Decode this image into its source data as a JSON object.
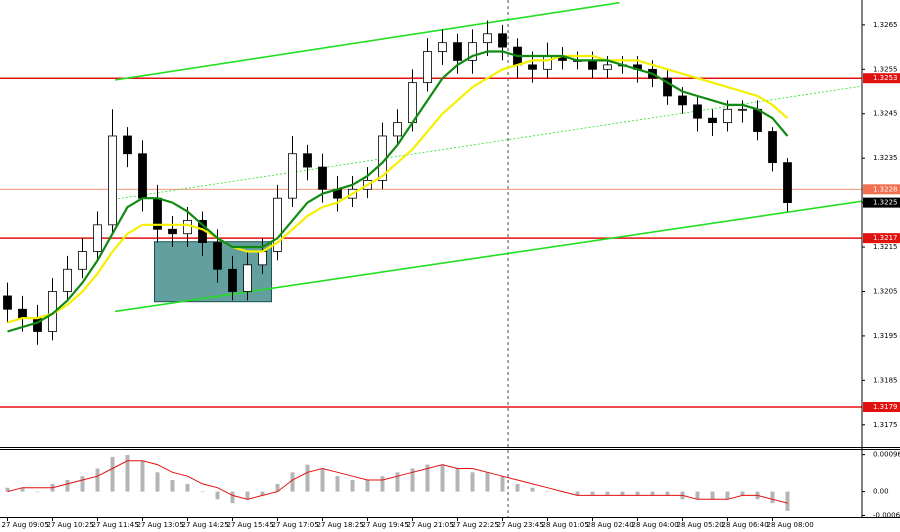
{
  "chart_data": {
    "type": "candlestick",
    "categories": [
      "27 Aug 09:05",
      null,
      null,
      "27 Aug 10:25",
      null,
      null,
      "27 Aug 11:45",
      null,
      null,
      "27 Aug 13:05",
      null,
      null,
      "27 Aug 14:25",
      null,
      null,
      "27 Aug 15:45",
      null,
      null,
      "27 Aug 17:05",
      null,
      null,
      "27 Aug 18:25",
      null,
      null,
      "27 Aug 19:45",
      null,
      null,
      "27 Aug 21:05",
      null,
      null,
      "27 Aug 22:25",
      null,
      null,
      "27 Aug 23:45",
      null,
      null,
      "28 Aug 01:05",
      null,
      null,
      "28 Aug 02:40",
      null,
      null,
      "28 Aug 04:00",
      null,
      null,
      "28 Aug 05:20",
      null,
      null,
      "28 Aug 06:40",
      null,
      null,
      "28 Aug 08:00",
      null
    ],
    "open": [
      1.3204,
      1.3201,
      1.3199,
      1.3196,
      1.3205,
      1.321,
      1.3214,
      1.322,
      1.324,
      1.3236,
      1.3226,
      1.3219,
      1.3218,
      1.3221,
      1.3216,
      1.321,
      1.3205,
      1.3211,
      1.3214,
      1.3226,
      1.3236,
      1.3233,
      1.3228,
      1.3226,
      1.3228,
      1.323,
      1.324,
      1.3243,
      1.3252,
      1.3259,
      1.3261,
      1.3257,
      1.3261,
      1.3263,
      1.326,
      1.3256,
      1.3255,
      1.3258,
      1.3257,
      1.3257,
      1.3255,
      1.3256,
      1.3256,
      1.3255,
      1.3253,
      1.3249,
      1.3247,
      1.3244,
      1.3243,
      1.3246,
      1.3246,
      1.3241,
      1.3234
    ],
    "high": [
      1.3207,
      1.3204,
      1.3202,
      1.3208,
      1.3213,
      1.3217,
      1.3223,
      1.3246,
      1.3242,
      1.3239,
      1.3229,
      1.3222,
      1.3224,
      1.3223,
      1.3219,
      1.3213,
      1.3214,
      1.3217,
      1.3229,
      1.324,
      1.3238,
      1.3236,
      1.3231,
      1.3231,
      1.3233,
      1.3243,
      1.3246,
      1.3255,
      1.3262,
      1.3264,
      1.3263,
      1.3264,
      1.3266,
      1.3265,
      1.3262,
      1.3259,
      1.3261,
      1.326,
      1.3259,
      1.3259,
      1.3258,
      1.3258,
      1.3258,
      1.3257,
      1.3255,
      1.3251,
      1.3249,
      1.3246,
      1.3248,
      1.3248,
      1.3248,
      1.3242,
      1.3235
    ],
    "low": [
      1.3198,
      1.3196,
      1.3193,
      1.3194,
      1.3203,
      1.3208,
      1.3212,
      1.3218,
      1.3233,
      1.3223,
      1.3216,
      1.3215,
      1.3215,
      1.3213,
      1.3207,
      1.3203,
      1.3203,
      1.3209,
      1.3212,
      1.3224,
      1.323,
      1.3225,
      1.3223,
      1.3224,
      1.3226,
      1.3228,
      1.3238,
      1.3241,
      1.325,
      1.3256,
      1.3254,
      1.3254,
      1.3258,
      1.3257,
      1.3253,
      1.3252,
      1.3253,
      1.3255,
      1.3255,
      1.3253,
      1.3253,
      1.3254,
      1.3252,
      1.3251,
      1.3247,
      1.3245,
      1.3241,
      1.324,
      1.3241,
      1.3243,
      1.3239,
      1.3232,
      1.3223
    ],
    "close": [
      1.3201,
      1.3199,
      1.3196,
      1.3205,
      1.321,
      1.3214,
      1.322,
      1.324,
      1.3236,
      1.3226,
      1.3219,
      1.3218,
      1.3221,
      1.3216,
      1.321,
      1.3205,
      1.3211,
      1.3214,
      1.3226,
      1.3236,
      1.3233,
      1.3228,
      1.3226,
      1.3228,
      1.323,
      1.324,
      1.3243,
      1.3252,
      1.3259,
      1.3261,
      1.3257,
      1.3261,
      1.3263,
      1.326,
      1.3256,
      1.3255,
      1.3258,
      1.3257,
      1.3257,
      1.3255,
      1.3256,
      1.3256,
      1.3255,
      1.3253,
      1.3249,
      1.3247,
      1.3244,
      1.3243,
      1.3246,
      1.3246,
      1.3241,
      1.3234,
      1.3225
    ],
    "ylim": [
      1.317,
      1.32706
    ],
    "yticks": [
      1.3265,
      1.3255,
      1.3245,
      1.3235,
      1.3225,
      1.3215,
      1.3205,
      1.3195,
      1.3185,
      1.3175
    ],
    "price_levels": [
      {
        "value": 1.3253,
        "color": "#e31010"
      },
      {
        "value": 1.3228,
        "color": "#f07050"
      },
      {
        "value": 1.3217,
        "color": "#e31010"
      },
      {
        "value": 1.3179,
        "color": "#e31010"
      }
    ],
    "last_price": 1.3225,
    "moving_averages": [
      {
        "color": "#f5f000",
        "values": [
          1.3198,
          1.3199,
          1.3199,
          1.32,
          1.3202,
          1.3205,
          1.3209,
          1.3214,
          1.3218,
          1.322,
          1.322,
          1.322,
          1.322,
          1.3219,
          1.3217,
          1.3215,
          1.3214,
          1.3214,
          1.3216,
          1.3219,
          1.3222,
          1.3224,
          1.3225,
          1.3227,
          1.3229,
          1.3231,
          1.3234,
          1.3237,
          1.3241,
          1.3245,
          1.3248,
          1.3251,
          1.3253,
          1.3255,
          1.3256,
          1.3257,
          1.3257,
          1.3258,
          1.3258,
          1.3258,
          1.3257,
          1.3257,
          1.3257,
          1.3256,
          1.3255,
          1.3254,
          1.3253,
          1.3252,
          1.3251,
          1.325,
          1.3249,
          1.3247,
          1.3244
        ]
      },
      {
        "color": "#108a10",
        "values": [
          1.3196,
          1.3197,
          1.3198,
          1.32,
          1.3203,
          1.3207,
          1.3212,
          1.3218,
          1.3224,
          1.3226,
          1.3226,
          1.3225,
          1.3223,
          1.322,
          1.3217,
          1.3215,
          1.3215,
          1.3215,
          1.3217,
          1.3221,
          1.3225,
          1.3227,
          1.3228,
          1.3229,
          1.3231,
          1.3234,
          1.3238,
          1.3243,
          1.3248,
          1.3253,
          1.3256,
          1.3258,
          1.3259,
          1.3259,
          1.3258,
          1.3258,
          1.3258,
          1.3258,
          1.3257,
          1.3257,
          1.3257,
          1.3256,
          1.3255,
          1.3254,
          1.3252,
          1.325,
          1.3249,
          1.3248,
          1.3247,
          1.3247,
          1.3246,
          1.3244,
          1.324
        ]
      }
    ],
    "trendlines": [
      {
        "x": [
          7.17,
          40.8
        ],
        "y": [
          1.32526,
          1.327
        ],
        "color": "#22e022",
        "dashed": false
      },
      {
        "x": [
          6.83,
          57.5
        ],
        "y": [
          1.32256,
          1.32515
        ],
        "color": "#22e022",
        "dashed": true
      },
      {
        "x": [
          7.17,
          57.5
        ],
        "y": [
          1.32005,
          1.32256
        ],
        "color": "#22e022",
        "dashed": false
      }
    ],
    "zone": {
      "x": [
        9.8,
        17.6
      ],
      "y": [
        1.32162,
        1.32027
      ],
      "color": "#2f7f7f"
    },
    "cursor_index": 33.37,
    "macd": {
      "type": "bar",
      "color": "#b4b4b4",
      "signal_color": "#e31010",
      "values": [
        0.0001,
        0.0001,
        0.0,
        0.0002,
        0.0003,
        0.0004,
        0.0006,
        0.0009,
        0.00095,
        0.0008,
        0.0005,
        0.0003,
        0.0002,
        0.0,
        -0.0002,
        -0.0003,
        -0.0002,
        -0.0001,
        0.0002,
        0.0005,
        0.0007,
        0.0006,
        0.0004,
        0.0003,
        0.0003,
        0.0004,
        0.0005,
        0.0006,
        0.0007,
        0.0007,
        0.0006,
        0.0005,
        0.0005,
        0.0004,
        0.0002,
        0.0001,
        0.0,
        0.0,
        -0.0001,
        -0.0001,
        -0.0001,
        -0.0001,
        -0.0001,
        -0.0001,
        -0.0001,
        -0.0002,
        -0.0002,
        -0.0002,
        -0.0002,
        -0.0001,
        -0.0002,
        -0.0003,
        -0.0005
      ],
      "signal": [
        0.0,
        0.0001,
        0.0001,
        0.0001,
        0.0002,
        0.0003,
        0.0004,
        0.0006,
        0.0008,
        0.0008,
        0.0007,
        0.0005,
        0.0004,
        0.0002,
        0.0001,
        -0.0001,
        -0.0002,
        -0.0001,
        0.0,
        0.0003,
        0.0005,
        0.0006,
        0.0005,
        0.0004,
        0.0003,
        0.0003,
        0.0004,
        0.0005,
        0.0006,
        0.0007,
        0.0006,
        0.0006,
        0.0005,
        0.0004,
        0.0003,
        0.0002,
        0.0001,
        0.0,
        -0.0001,
        -0.0001,
        -0.0001,
        -0.0001,
        -0.0001,
        -0.0001,
        -0.0001,
        -0.0001,
        -0.0002,
        -0.0002,
        -0.0002,
        -0.0001,
        -0.0001,
        -0.0002,
        -0.0003
      ],
      "ylim": [
        -0.00066,
        0.00108
      ],
      "yticks": [
        0.00096,
        {
          "value": 0,
          "label": "0.00"
        },
        -0.00062
      ]
    }
  }
}
